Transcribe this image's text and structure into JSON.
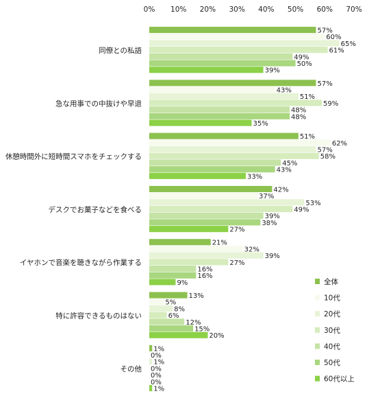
{
  "chart_data": {
    "type": "bar",
    "orientation": "horizontal",
    "title": "",
    "xlim": [
      0,
      70
    ],
    "x_ticks": [
      "0%",
      "10%",
      "20%",
      "30%",
      "40%",
      "50%",
      "60%",
      "70%"
    ],
    "categories": [
      "同僚との私語",
      "急な用事での中抜けや早退",
      "休憩時間外に短時間スマホをチェックする",
      "デスクでお菓子などを食べる",
      "イヤホンで音楽を聴きながら作業する",
      "特に許容できるものはない",
      "その他"
    ],
    "series": [
      {
        "name": "全体",
        "color": "#8dc14f",
        "values": [
          57,
          57,
          51,
          42,
          21,
          13,
          1
        ]
      },
      {
        "name": "10代",
        "color": "#f6fbee",
        "values": [
          60,
          43,
          62,
          37,
          32,
          5,
          0
        ]
      },
      {
        "name": "20代",
        "color": "#e7f3d6",
        "values": [
          65,
          51,
          57,
          53,
          39,
          8,
          1
        ]
      },
      {
        "name": "30代",
        "color": "#d6ecbd",
        "values": [
          61,
          59,
          58,
          49,
          27,
          6,
          0
        ]
      },
      {
        "name": "40代",
        "color": "#c4e3a5",
        "values": [
          49,
          48,
          45,
          39,
          16,
          12,
          0
        ]
      },
      {
        "name": "50代",
        "color": "#a9d77f",
        "values": [
          50,
          48,
          43,
          38,
          16,
          15,
          0
        ]
      },
      {
        "name": "60代以上",
        "color": "#8cd147",
        "values": [
          39,
          35,
          33,
          27,
          9,
          20,
          1
        ]
      }
    ],
    "value_suffix": "%",
    "grid": false,
    "legend_position": "bottom-right"
  }
}
